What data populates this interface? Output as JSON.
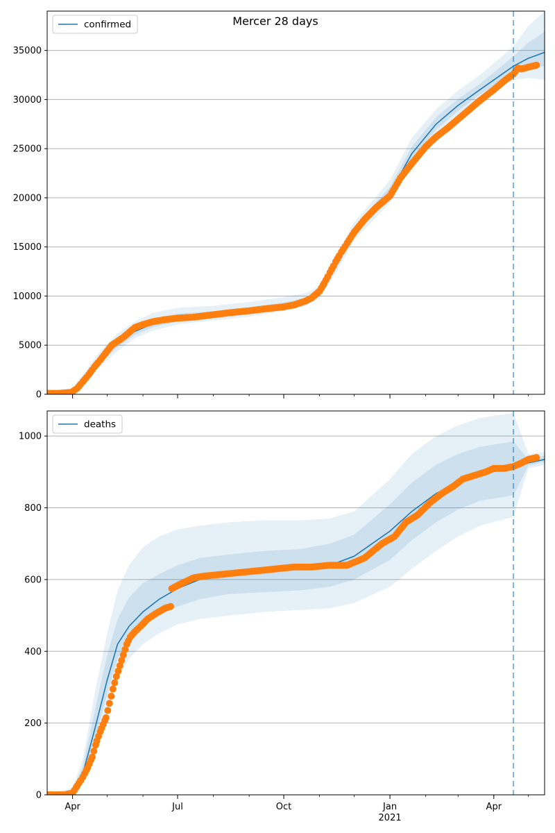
{
  "figure": {
    "title": "Mercer 28 days",
    "colors": {
      "line": "#1f77b4",
      "points": "#ff7f0e",
      "band": "#1f77b4",
      "grid": "#b0b0b0",
      "forecast_line": "#1f77b4"
    }
  },
  "chart_data": [
    {
      "type": "line",
      "name": "confirmed-panel",
      "title": "Mercer 28 days",
      "legend": [
        "confirmed"
      ],
      "legend_position": "top-left",
      "grid": "y-only",
      "x_range": [
        "2020-03-10",
        "2021-05-15"
      ],
      "ylim": [
        0,
        39000
      ],
      "y_ticks": [
        0,
        5000,
        10000,
        15000,
        20000,
        25000,
        30000,
        35000
      ],
      "forecast_start": "2021-04-18",
      "model": {
        "x": [
          "2020-03-10",
          "2020-03-31",
          "2020-04-10",
          "2020-04-25",
          "2020-05-10",
          "2020-05-25",
          "2020-06-10",
          "2020-07-01",
          "2020-08-01",
          "2020-09-01",
          "2020-10-01",
          "2020-10-20",
          "2020-11-01",
          "2020-11-15",
          "2020-12-01",
          "2020-12-20",
          "2021-01-01",
          "2021-01-20",
          "2021-02-10",
          "2021-03-01",
          "2021-03-20",
          "2021-04-18",
          "2021-05-01",
          "2021-05-15"
        ],
        "y": [
          100,
          300,
          1500,
          3500,
          5200,
          6400,
          7200,
          7700,
          8000,
          8400,
          8900,
          9400,
          10100,
          13000,
          16500,
          19000,
          20500,
          24500,
          27500,
          29400,
          31000,
          33400,
          34200,
          34800
        ]
      },
      "bands": [
        {
          "x": [
            "2020-03-10",
            "2020-03-31",
            "2020-04-10",
            "2020-04-25",
            "2020-05-10",
            "2020-05-25",
            "2020-06-10",
            "2020-07-01",
            "2020-08-01",
            "2020-09-01",
            "2020-10-01",
            "2020-10-20",
            "2020-11-01",
            "2020-11-15",
            "2020-12-01",
            "2020-12-20",
            "2021-01-01",
            "2021-01-20",
            "2021-02-10",
            "2021-03-01",
            "2021-03-20",
            "2021-04-18",
            "2021-05-01",
            "2021-05-15"
          ],
          "lower": [
            0,
            200,
            1100,
            2800,
            4400,
            5700,
            6500,
            7100,
            7500,
            7900,
            8500,
            9000,
            9700,
            12300,
            15700,
            18000,
            19500,
            23300,
            26300,
            28300,
            30000,
            32000,
            32200,
            32000
          ],
          "upper": [
            200,
            500,
            2000,
            4400,
            6200,
            7400,
            8300,
            8800,
            9000,
            9400,
            9900,
            10300,
            11000,
            14000,
            17500,
            20100,
            21800,
            26100,
            29000,
            30900,
            32500,
            35400,
            37500,
            39000
          ]
        },
        {
          "x": [
            "2020-03-10",
            "2020-03-31",
            "2020-04-10",
            "2020-04-25",
            "2020-05-10",
            "2020-05-25",
            "2020-06-10",
            "2020-07-01",
            "2020-08-01",
            "2020-09-01",
            "2020-10-01",
            "2020-10-20",
            "2020-11-01",
            "2020-11-15",
            "2020-12-01",
            "2020-12-20",
            "2021-01-01",
            "2021-01-20",
            "2021-02-10",
            "2021-03-01",
            "2021-03-20",
            "2021-04-18",
            "2021-05-01",
            "2021-05-15"
          ],
          "lower": [
            50,
            250,
            1300,
            3200,
            4800,
            6050,
            6850,
            7400,
            7750,
            8150,
            8700,
            9200,
            9900,
            12650,
            16100,
            18500,
            20000,
            23900,
            26900,
            28850,
            30500,
            32700,
            33200,
            33400
          ],
          "upper": [
            150,
            400,
            1750,
            3900,
            5700,
            6850,
            7650,
            8200,
            8450,
            8850,
            9350,
            9800,
            10500,
            13450,
            16950,
            19550,
            21100,
            25200,
            28200,
            30050,
            31600,
            34400,
            35800,
            36900
          ]
        }
      ],
      "points": {
        "x": [
          "2020-03-10",
          "2020-03-20",
          "2020-03-31",
          "2020-04-05",
          "2020-04-10",
          "2020-04-15",
          "2020-04-20",
          "2020-04-25",
          "2020-05-01",
          "2020-05-05",
          "2020-05-10",
          "2020-05-15",
          "2020-05-20",
          "2020-05-25",
          "2020-06-01",
          "2020-06-10",
          "2020-06-20",
          "2020-07-01",
          "2020-07-15",
          "2020-08-01",
          "2020-08-15",
          "2020-09-01",
          "2020-09-15",
          "2020-10-01",
          "2020-10-10",
          "2020-10-20",
          "2020-10-25",
          "2020-11-01",
          "2020-11-05",
          "2020-11-10",
          "2020-11-15",
          "2020-11-20",
          "2020-11-25",
          "2020-12-01",
          "2020-12-10",
          "2020-12-20",
          "2021-01-01",
          "2021-01-10",
          "2021-01-20",
          "2021-02-01",
          "2021-02-10",
          "2021-02-20",
          "2021-03-01",
          "2021-03-10",
          "2021-03-20",
          "2021-04-01",
          "2021-04-10",
          "2021-04-18",
          "2021-04-22",
          "2021-04-25",
          "2021-05-01",
          "2021-05-08"
        ],
        "y": [
          100,
          100,
          200,
          600,
          1300,
          2000,
          2800,
          3500,
          4400,
          5000,
          5400,
          5800,
          6300,
          6800,
          7100,
          7400,
          7600,
          7750,
          7850,
          8100,
          8300,
          8500,
          8700,
          8900,
          9100,
          9500,
          9800,
          10500,
          11300,
          12400,
          13500,
          14500,
          15400,
          16500,
          17800,
          19000,
          20200,
          22000,
          23500,
          25200,
          26200,
          27100,
          28000,
          28900,
          29900,
          31000,
          31900,
          32600,
          33200,
          33100,
          33300,
          33500
        ]
      }
    },
    {
      "type": "line",
      "name": "deaths-panel",
      "legend": [
        "deaths"
      ],
      "legend_position": "top-left",
      "grid": "y-only",
      "x_range": [
        "2020-03-10",
        "2021-05-15"
      ],
      "ylim": [
        0,
        1070
      ],
      "y_ticks": [
        0,
        200,
        400,
        600,
        800,
        1000
      ],
      "x_tick_labels": [
        {
          "date": "2020-04-01",
          "label": "Apr"
        },
        {
          "date": "2020-07-01",
          "label": "Jul"
        },
        {
          "date": "2020-10-01",
          "label": "Oct"
        },
        {
          "date": "2021-01-01",
          "label": "Jan",
          "sublabel": "2021"
        },
        {
          "date": "2021-04-01",
          "label": "Apr"
        }
      ],
      "forecast_start": "2021-04-18",
      "model": {
        "x": [
          "2020-03-10",
          "2020-04-01",
          "2020-04-10",
          "2020-04-20",
          "2020-05-01",
          "2020-05-10",
          "2020-05-20",
          "2020-06-01",
          "2020-06-15",
          "2020-07-01",
          "2020-07-20",
          "2020-08-15",
          "2020-09-15",
          "2020-10-15",
          "2020-11-10",
          "2020-12-01",
          "2021-01-01",
          "2021-01-20",
          "2021-02-10",
          "2021-03-01",
          "2021-03-20",
          "2021-04-18",
          "2021-05-01",
          "2021-05-15"
        ],
        "y": [
          0,
          10,
          60,
          180,
          320,
          420,
          470,
          510,
          545,
          575,
          600,
          615,
          625,
          630,
          640,
          665,
          735,
          790,
          840,
          870,
          895,
          910,
          925,
          935
        ]
      },
      "bands": [
        {
          "x": [
            "2020-03-10",
            "2020-04-01",
            "2020-04-10",
            "2020-04-20",
            "2020-05-01",
            "2020-05-10",
            "2020-05-20",
            "2020-06-01",
            "2020-06-15",
            "2020-07-01",
            "2020-07-20",
            "2020-08-15",
            "2020-09-15",
            "2020-10-15",
            "2020-11-10",
            "2020-12-01",
            "2021-01-01",
            "2021-01-20",
            "2021-02-10",
            "2021-03-01",
            "2021-03-20",
            "2021-04-18",
            "2021-05-01",
            "2021-05-15"
          ],
          "lower": [
            0,
            5,
            40,
            120,
            230,
            320,
            380,
            420,
            450,
            475,
            490,
            500,
            510,
            515,
            520,
            535,
            580,
            630,
            680,
            720,
            750,
            775,
            910,
            920
          ],
          "upper": [
            0,
            20,
            100,
            280,
            450,
            570,
            640,
            690,
            720,
            740,
            750,
            760,
            765,
            765,
            770,
            790,
            880,
            950,
            1000,
            1030,
            1050,
            1065,
            950,
            955
          ]
        },
        {
          "x": [
            "2020-03-10",
            "2020-04-01",
            "2020-04-10",
            "2020-04-20",
            "2020-05-01",
            "2020-05-10",
            "2020-05-20",
            "2020-06-01",
            "2020-06-15",
            "2020-07-01",
            "2020-07-20",
            "2020-08-15",
            "2020-09-15",
            "2020-10-15",
            "2020-11-10",
            "2020-12-01",
            "2021-01-01",
            "2021-01-20",
            "2021-02-10",
            "2021-03-01",
            "2021-03-20",
            "2021-04-18",
            "2021-05-01",
            "2021-05-15"
          ],
          "lower": [
            0,
            7,
            50,
            150,
            280,
            380,
            430,
            470,
            500,
            525,
            545,
            560,
            565,
            570,
            580,
            600,
            655,
            710,
            760,
            795,
            820,
            835,
            918,
            928
          ],
          "upper": [
            0,
            15,
            80,
            230,
            390,
            490,
            550,
            590,
            615,
            640,
            660,
            670,
            680,
            685,
            700,
            725,
            810,
            870,
            920,
            950,
            970,
            985,
            935,
            945
          ]
        }
      ],
      "points": {
        "x": [
          "2020-03-10",
          "2020-03-25",
          "2020-04-01",
          "2020-04-05",
          "2020-04-10",
          "2020-04-14",
          "2020-04-18",
          "2020-04-22",
          "2020-04-26",
          "2020-04-30",
          "2020-05-03",
          "2020-05-06",
          "2020-05-09",
          "2020-05-12",
          "2020-05-15",
          "2020-05-18",
          "2020-05-21",
          "2020-05-25",
          "2020-05-30",
          "2020-06-05",
          "2020-06-12",
          "2020-06-20",
          "2020-06-25",
          "2020-06-26",
          "2020-07-05",
          "2020-07-15",
          "2020-07-25",
          "2020-08-10",
          "2020-08-25",
          "2020-09-10",
          "2020-09-25",
          "2020-10-10",
          "2020-10-25",
          "2020-11-10",
          "2020-11-25",
          "2020-12-10",
          "2020-12-25",
          "2021-01-05",
          "2021-01-15",
          "2021-01-25",
          "2021-02-05",
          "2021-02-15",
          "2021-02-25",
          "2021-03-05",
          "2021-03-15",
          "2021-03-25",
          "2021-04-01",
          "2021-04-10",
          "2021-04-18",
          "2021-04-25",
          "2021-05-01",
          "2021-05-08"
        ],
        "y": [
          0,
          0,
          5,
          25,
          50,
          75,
          105,
          150,
          185,
          215,
          255,
          295,
          330,
          360,
          390,
          420,
          440,
          455,
          470,
          490,
          505,
          520,
          525,
          575,
          590,
          605,
          610,
          615,
          620,
          625,
          630,
          635,
          635,
          640,
          640,
          660,
          700,
          720,
          760,
          780,
          815,
          840,
          860,
          880,
          890,
          900,
          910,
          910,
          915,
          925,
          935,
          940
        ]
      }
    }
  ]
}
